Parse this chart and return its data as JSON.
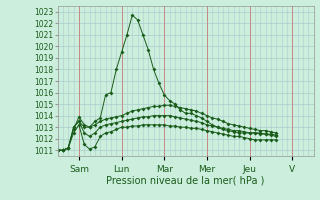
{
  "xlabel": "Pression niveau de la mer( hPa )",
  "bg_color": "#cceedd",
  "grid_color_major": "#aacccc",
  "grid_color_minor": "#bbdddd",
  "line_color": "#1a5c1a",
  "vline_color": "#cc8888",
  "ylim": [
    1010.5,
    1023.5
  ],
  "yticks": [
    1011,
    1012,
    1013,
    1014,
    1015,
    1016,
    1017,
    1018,
    1019,
    1020,
    1021,
    1022,
    1023
  ],
  "day_labels": [
    "Sam",
    "Lun",
    "Mar",
    "Mer",
    "Jeu",
    "V"
  ],
  "day_positions": [
    24,
    72,
    120,
    168,
    216,
    264
  ],
  "xlim": [
    0,
    288
  ],
  "lines": [
    {
      "x": [
        0,
        6,
        12,
        18,
        24,
        30,
        36,
        42,
        48,
        54,
        60,
        66,
        72,
        78,
        84,
        90,
        96,
        102,
        108,
        114,
        120,
        126,
        132,
        138,
        144,
        150,
        156,
        162,
        168,
        174,
        180,
        186,
        192,
        198,
        204,
        210,
        216,
        222,
        228,
        234,
        240,
        246
      ],
      "y": [
        1011.0,
        1011.0,
        1011.2,
        1012.8,
        1013.9,
        1013.2,
        1013.0,
        1013.5,
        1013.8,
        1015.8,
        1016.0,
        1018.0,
        1019.5,
        1021.0,
        1022.7,
        1022.3,
        1021.0,
        1019.7,
        1018.0,
        1016.8,
        1015.8,
        1015.3,
        1015.0,
        1014.5,
        1014.2,
        1014.2,
        1014.0,
        1013.8,
        1013.5,
        1013.2,
        1013.0,
        1012.8,
        1012.7,
        1012.6,
        1012.5,
        1012.5,
        1012.5,
        1012.5,
        1012.5,
        1012.4,
        1012.4,
        1012.3
      ]
    },
    {
      "x": [
        0,
        6,
        12,
        18,
        24,
        30,
        36,
        42,
        48,
        54,
        60,
        66,
        72,
        78,
        84,
        90,
        96,
        102,
        108,
        114,
        120,
        126,
        132,
        138,
        144,
        150,
        156,
        162,
        168,
        174,
        180,
        186,
        192,
        198,
        204,
        210,
        216,
        222,
        228,
        234,
        240,
        246
      ],
      "y": [
        1011.0,
        1011.0,
        1011.2,
        1013.0,
        1013.5,
        1013.0,
        1013.0,
        1013.2,
        1013.5,
        1013.7,
        1013.8,
        1013.9,
        1014.0,
        1014.2,
        1014.4,
        1014.5,
        1014.6,
        1014.7,
        1014.8,
        1014.8,
        1014.9,
        1014.9,
        1014.8,
        1014.7,
        1014.6,
        1014.5,
        1014.4,
        1014.2,
        1014.0,
        1013.8,
        1013.7,
        1013.5,
        1013.3,
        1013.2,
        1013.1,
        1013.0,
        1012.9,
        1012.8,
        1012.7,
        1012.7,
        1012.6,
        1012.5
      ]
    },
    {
      "x": [
        0,
        6,
        12,
        18,
        24,
        30,
        36,
        42,
        48,
        54,
        60,
        66,
        72,
        78,
        84,
        90,
        96,
        102,
        108,
        114,
        120,
        126,
        132,
        138,
        144,
        150,
        156,
        162,
        168,
        174,
        180,
        186,
        192,
        198,
        204,
        210,
        216,
        222,
        228,
        234,
        240,
        246
      ],
      "y": [
        1011.0,
        1011.0,
        1011.2,
        1013.0,
        1013.5,
        1012.5,
        1012.2,
        1012.5,
        1013.0,
        1013.2,
        1013.3,
        1013.4,
        1013.5,
        1013.6,
        1013.7,
        1013.8,
        1013.9,
        1013.9,
        1014.0,
        1014.0,
        1014.0,
        1014.0,
        1013.9,
        1013.8,
        1013.7,
        1013.6,
        1013.5,
        1013.4,
        1013.2,
        1013.1,
        1013.0,
        1012.9,
        1012.8,
        1012.7,
        1012.7,
        1012.6,
        1012.5,
        1012.5,
        1012.4,
        1012.4,
        1012.3,
        1012.2
      ]
    },
    {
      "x": [
        0,
        6,
        12,
        18,
        24,
        30,
        36,
        42,
        48,
        54,
        60,
        66,
        72,
        78,
        84,
        90,
        96,
        102,
        108,
        114,
        120,
        126,
        132,
        138,
        144,
        150,
        156,
        162,
        168,
        174,
        180,
        186,
        192,
        198,
        204,
        210,
        216,
        222,
        228,
        234,
        240,
        246
      ],
      "y": [
        1011.0,
        1011.0,
        1011.2,
        1012.5,
        1013.2,
        1011.5,
        1011.1,
        1011.3,
        1012.2,
        1012.5,
        1012.6,
        1012.8,
        1013.0,
        1013.0,
        1013.1,
        1013.1,
        1013.2,
        1013.2,
        1013.2,
        1013.2,
        1013.2,
        1013.1,
        1013.1,
        1013.0,
        1013.0,
        1012.9,
        1012.9,
        1012.8,
        1012.7,
        1012.6,
        1012.5,
        1012.4,
        1012.3,
        1012.2,
        1012.2,
        1012.1,
        1012.0,
        1011.9,
        1011.9,
        1011.9,
        1011.9,
        1011.9
      ]
    }
  ]
}
